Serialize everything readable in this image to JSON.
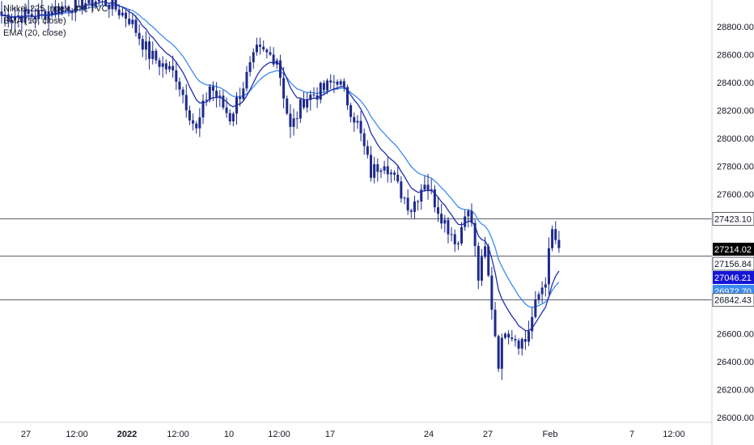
{
  "colors": {
    "candle": "#1e2a8c",
    "ema_fast": "#1f2fb5",
    "ema_slow": "#3d8bef",
    "hline": "#5a5e66",
    "axis_text": "#131722",
    "last_price_bg": "#000000",
    "ema_fast_bg": "#1515d6",
    "ema_slow_bg": "#3d8bef"
  },
  "legend": {
    "title": "Nikkei 225 Index, 4H, TVC",
    "ema_fast": "EMA (10, close)",
    "ema_slow": "EMA (20, close)"
  },
  "chart_data": {
    "type": "candlestick",
    "title": "Nikkei 225 Index, 4H, TVC",
    "xlabel": "",
    "ylabel": "",
    "ylim": [
      25990,
      29000
    ],
    "x_tick_labels": [
      "27",
      "12:00",
      "2022",
      "12:00",
      "10",
      "12:00",
      "17",
      "24",
      "27",
      "Feb",
      "7",
      "12:00"
    ],
    "y_tick_labels": [
      "28800.00",
      "28600.00",
      "28400.00",
      "28200.00",
      "28000.00",
      "27800.00",
      "27600.00",
      "26600.00",
      "26400.00",
      "26200.00",
      "26000.00"
    ],
    "y_ticks": [
      28800,
      28600,
      28400,
      28200,
      28000,
      27800,
      27600,
      26600,
      26400,
      26200,
      26000
    ],
    "horizontal_levels": [
      27423.1,
      27156.84,
      26842.43
    ],
    "price_labels": [
      {
        "text": "27423.10",
        "value": 27423.1,
        "kind": "level"
      },
      {
        "text": "27214.02",
        "value": 27214.02,
        "kind": "last"
      },
      {
        "text": "27156.84",
        "value": 27156.84,
        "kind": "level"
      },
      {
        "text": "27046.21",
        "value": 27046.21,
        "kind": "ema_fast"
      },
      {
        "text": "26972.70",
        "value": 26972.7,
        "kind": "ema_slow"
      },
      {
        "text": "26842.43",
        "value": 26842.43,
        "kind": "level"
      }
    ],
    "anchors": [
      [
        0,
        28880
      ],
      [
        10,
        28880
      ],
      [
        18,
        28940
      ],
      [
        30,
        29000
      ],
      [
        38,
        28860
      ],
      [
        44,
        28600
      ],
      [
        52,
        28450
      ],
      [
        58,
        28050
      ],
      [
        62,
        28380
      ],
      [
        68,
        28150
      ],
      [
        76,
        28620
      ],
      [
        82,
        28580
      ],
      [
        86,
        28060
      ],
      [
        90,
        28280
      ],
      [
        96,
        28350
      ],
      [
        100,
        28430
      ],
      [
        106,
        28100
      ],
      [
        110,
        27750
      ],
      [
        114,
        27850
      ],
      [
        118,
        27650
      ],
      [
        122,
        27500
      ],
      [
        126,
        27700
      ],
      [
        132,
        27400
      ],
      [
        136,
        27250
      ],
      [
        138,
        27500
      ],
      [
        140,
        27400
      ],
      [
        142,
        27000
      ],
      [
        144,
        27200
      ],
      [
        148,
        26400
      ],
      [
        150,
        26650
      ],
      [
        154,
        26550
      ],
      [
        156,
        26550
      ],
      [
        160,
        26880
      ],
      [
        162,
        27000
      ],
      [
        164,
        27330
      ],
      [
        166,
        27214
      ]
    ],
    "ema_fast_last": 27046.21,
    "ema_slow_last": 26972.7,
    "ema_fast_period": 10,
    "ema_slow_period": 20,
    "candle_count": 167
  }
}
